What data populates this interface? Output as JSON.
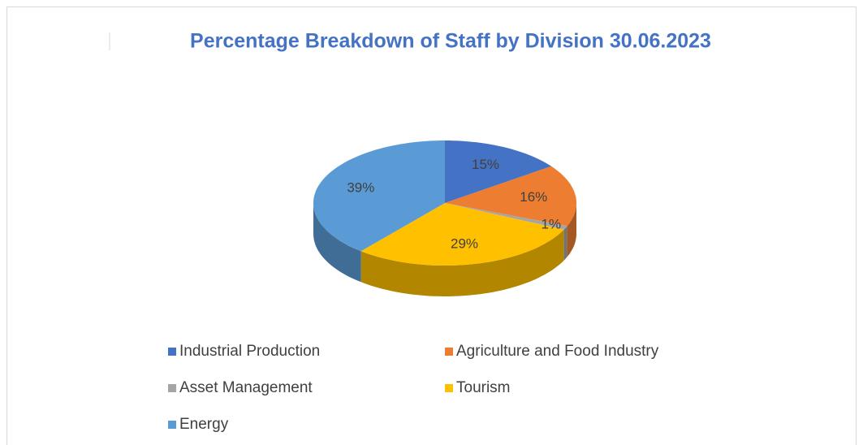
{
  "chart_data": {
    "type": "pie",
    "title": "Percentage Breakdown of Staff by Division 30.06.2023",
    "categories": [
      "Industrial Production",
      "Agriculture and Food Industry",
      "Asset Management",
      "Tourism",
      "Energy"
    ],
    "values": [
      15,
      16,
      1,
      29,
      39
    ],
    "value_labels": [
      "15%",
      "16%",
      "1%",
      "29%",
      "39%"
    ],
    "colors": [
      "#4472c4",
      "#ed7d31",
      "#a5a5a5",
      "#ffc000",
      "#5b9bd5"
    ]
  }
}
